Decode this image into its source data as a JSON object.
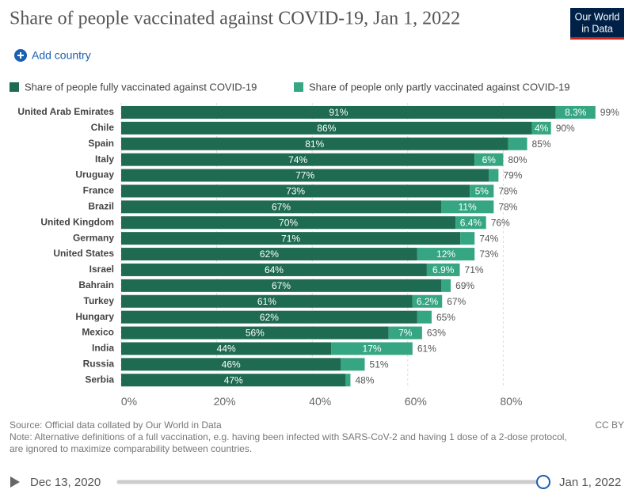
{
  "header": {
    "logo_lines": [
      "Our World",
      "in Data"
    ]
  },
  "controls": {
    "add_country": "Add country"
  },
  "chart_data": {
    "type": "stacked-bar-horizontal",
    "title": "Share of people vaccinated against COVID-19, Jan 1, 2022",
    "categories": [
      "United Arab Emirates",
      "Chile",
      "Spain",
      "Italy",
      "Uruguay",
      "France",
      "Brazil",
      "United Kingdom",
      "Germany",
      "United States",
      "Israel",
      "Bahrain",
      "Turkey",
      "Hungary",
      "Mexico",
      "India",
      "Russia",
      "Serbia"
    ],
    "series": [
      {
        "name": "Share of people fully vaccinated against COVID-19",
        "color": "#1f6b52",
        "values": [
          91,
          86,
          81,
          74,
          77,
          73,
          67,
          70,
          71,
          62,
          64,
          67,
          61,
          62,
          56,
          44,
          46,
          47
        ],
        "value_labels": [
          "91%",
          "86%",
          "81%",
          "74%",
          "77%",
          "73%",
          "67%",
          "70%",
          "71%",
          "62%",
          "64%",
          "67%",
          "61%",
          "62%",
          "56%",
          "44%",
          "46%",
          "47%"
        ]
      },
      {
        "name": "Share of people only partly vaccinated against COVID-19",
        "color": "#36a682",
        "values": [
          8.3,
          4,
          4,
          6,
          2,
          5,
          11,
          6.4,
          3,
          12,
          6.9,
          2,
          6.2,
          3,
          7,
          17,
          5,
          1
        ],
        "value_labels": [
          "8.3%",
          "4%",
          null,
          "6%",
          null,
          "5%",
          "11%",
          "6.4%",
          null,
          "12%",
          "6.9%",
          null,
          "6.2%",
          null,
          "7%",
          "17%",
          null,
          null
        ]
      }
    ],
    "totals": {
      "values": [
        99,
        90,
        85,
        80,
        79,
        78,
        78,
        76,
        74,
        73,
        71,
        69,
        67,
        65,
        63,
        61,
        51,
        48
      ],
      "value_labels": [
        "99%",
        "90%",
        "85%",
        "80%",
        "79%",
        "78%",
        "78%",
        "76%",
        "74%",
        "73%",
        "71%",
        "69%",
        "67%",
        "65%",
        "63%",
        "61%",
        "51%",
        "48%"
      ]
    },
    "xlim": [
      0,
      100
    ],
    "xticks": [
      {
        "value": 0,
        "label": "0%"
      },
      {
        "value": 20,
        "label": "20%"
      },
      {
        "value": 40,
        "label": "40%"
      },
      {
        "value": 60,
        "label": "60%"
      },
      {
        "value": 80,
        "label": "80%"
      }
    ],
    "grid": true
  },
  "footer": {
    "source": "Source: Official data collated by Our World in Data",
    "note": [
      "Note: Alternative definitions of a full vaccination, e.g. having been infected with SARS-CoV-2 and having 1 dose of a 2-dose protocol,",
      "are ignored to maximize comparability between countries."
    ],
    "license": "CC BY"
  },
  "timeline": {
    "start": "Dec 13, 2020",
    "end": "Jan 1, 2022"
  }
}
